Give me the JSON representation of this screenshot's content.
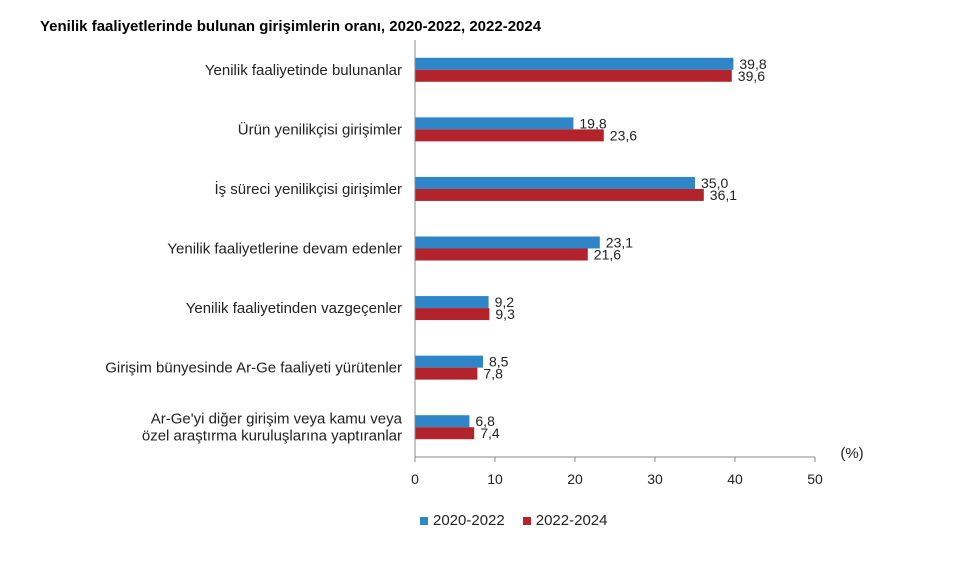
{
  "title": "Yenilik faaliyetlerinde bulunan girişimlerin oranı, 2020-2022, 2022-2024",
  "chart_data": {
    "type": "bar",
    "orientation": "horizontal",
    "title": "Yenilik faaliyetlerinde bulunan girişimlerin oranı, 2020-2022, 2022-2024",
    "unit_label": "(%)",
    "xlim": [
      0,
      50
    ],
    "x_ticks": [
      0,
      10,
      20,
      30,
      40,
      50
    ],
    "grid": false,
    "legend_position": "bottom",
    "categories": [
      [
        "Yenilik faaliyetinde bulunanlar"
      ],
      [
        "Ürün yenilikçisi girişimler"
      ],
      [
        "İş süreci yenilikçisi girişimler"
      ],
      [
        "Yenilik faaliyetlerine devam edenler"
      ],
      [
        "Yenilik faaliyetinden vazgeçenler"
      ],
      [
        "Girişim bünyesinde Ar-Ge faaliyeti yürütenler"
      ],
      [
        "Ar-Ge'yi diğer girişim veya kamu veya",
        "özel araştırma kuruluşlarına yaptıranlar"
      ]
    ],
    "series": [
      {
        "name": "2020-2022",
        "color": "#2e86c8",
        "values": [
          39.8,
          19.8,
          35.0,
          23.1,
          9.2,
          8.5,
          6.8
        ],
        "labels": [
          "39,8",
          "19,8",
          "35,0",
          "23,1",
          "9,2",
          "8,5",
          "6,8"
        ]
      },
      {
        "name": "2022-2024",
        "color": "#b3232c",
        "values": [
          39.6,
          23.6,
          36.1,
          21.6,
          9.3,
          7.8,
          7.4
        ],
        "labels": [
          "39,6",
          "23,6",
          "36,1",
          "21,6",
          "9,3",
          "7,8",
          "7,4"
        ]
      }
    ]
  }
}
